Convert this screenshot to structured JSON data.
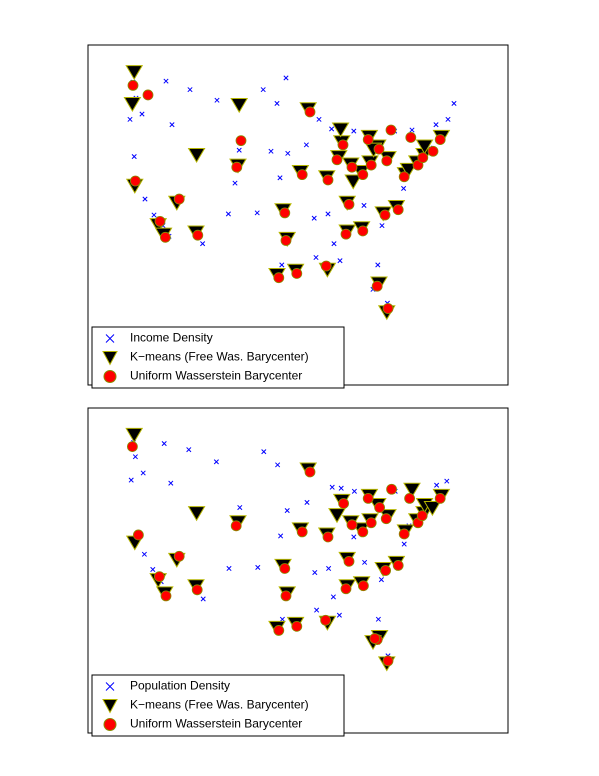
{
  "chart_data": [
    {
      "type": "scatter",
      "xlim": [
        -130,
        -60
      ],
      "ylim": [
        19,
        51
      ],
      "legend": "lower left",
      "series": [
        {
          "name": "Income Density",
          "color": "#0000ff",
          "marker": "x",
          "x": [
            -122.5,
            -122,
            -123,
            -121,
            -122.3,
            -121.8,
            -120.5,
            -119,
            -117.5,
            -116.5,
            -117,
            -116,
            -113,
            -111.9,
            -112,
            -110.9,
            -115.1,
            -108.5,
            -106.6,
            -104.9,
            -104.8,
            -105.5,
            -100.8,
            -98.5,
            -97,
            -96.7,
            -98,
            -99.5,
            -101.8,
            -97.5,
            -96.8,
            -95.4,
            -98.5,
            -97.7,
            -94.6,
            -93.3,
            -93.6,
            -91.5,
            -90.2,
            -90,
            -92.3,
            -90,
            -88,
            -87.9,
            -89.4,
            -86.2,
            -85.7,
            -83,
            -84.5,
            -81.7,
            -80,
            -83,
            -85.8,
            -86.8,
            -84,
            -86.8,
            -84.4,
            -81,
            -80.8,
            -78.6,
            -77.4,
            -77,
            -76.6,
            -75.2,
            -74,
            -73,
            -71,
            -72,
            -70,
            -69,
            -76,
            -78.9,
            -81.7,
            -81.4,
            -82.5,
            -80.2,
            -80.1,
            -88,
            -89,
            -92
          ],
          "y": [
            47.5,
            46,
            44,
            44.5,
            40.5,
            38,
            36.5,
            35,
            34,
            33,
            47.6,
            43.5,
            46.8,
            40.7,
            33.5,
            32.3,
            36.2,
            45.8,
            35.1,
            39.7,
            41.1,
            38,
            46.8,
            45.5,
            47.9,
            40.8,
            38.5,
            41,
            35.2,
            35.5,
            32.8,
            29.8,
            29.4,
            30.3,
            39.1,
            45,
            41.6,
            44,
            38.6,
            35.1,
            34.7,
            30,
            41.8,
            43,
            43.1,
            39.8,
            42.9,
            42.3,
            39.1,
            41.5,
            40.4,
            40,
            38.2,
            36.2,
            35.9,
            33.5,
            33.7,
            34,
            35.2,
            35.8,
            37.5,
            38.9,
            39.3,
            40,
            40.7,
            41.3,
            42.4,
            43.5,
            44,
            45.5,
            43,
            42.9,
            30.3,
            28.5,
            28,
            25.8,
            26.7,
            30.7,
            32.3,
            31
          ]
        },
        {
          "name": "K−means (Free Was. Barycenter)",
          "color": "#000000",
          "edgecolor": "#b5b500",
          "marker": "v",
          "x": [
            -122.3,
            -122.6,
            -122.2,
            -118.3,
            -117.4,
            -112,
            -105,
            -115.2,
            -111.9,
            -104.8,
            -96.8,
            -95.4,
            -98.5,
            -97.5,
            -94.6,
            -93.3,
            -90.2,
            -87.7,
            -87.9,
            -83.1,
            -81.7,
            -84.5,
            -86.2,
            -80,
            -83,
            -85.8,
            -86.8,
            -84.4,
            -80.8,
            -78.6,
            -77.1,
            -75.2,
            -74,
            -73.9,
            -71.1,
            -76.6,
            -80.2,
            -81.5,
            -90.1,
            -86.8,
            -88.2,
            -82.4
          ],
          "y": [
            48.5,
            45.5,
            37.8,
            34.1,
            33.2,
            33.4,
            39.7,
            36.2,
            40.7,
            45.4,
            32.8,
            29.8,
            29.4,
            35.5,
            39.1,
            45,
            38.6,
            41.9,
            43.1,
            42.4,
            41.5,
            39.1,
            39.8,
            40.4,
            40,
            38.2,
            36.2,
            33.8,
            35.2,
            35.8,
            38.9,
            40,
            40.7,
            41.5,
            42.4,
            39.3,
            25.9,
            28.6,
            29.9,
            33.5,
            40.5,
            41.2
          ]
        },
        {
          "name": "Uniform Wasserstein Barycenter",
          "color": "#ff0000",
          "edgecolor": "#8a8a00",
          "marker": "o",
          "x": [
            -122.5,
            -120,
            -122.1,
            -118,
            -117.1,
            -111.7,
            -105.2,
            -114.8,
            -104.5,
            -97,
            -95.2,
            -98.2,
            -97.2,
            -94.3,
            -93,
            -90,
            -87.5,
            -83.3,
            -81.5,
            -84.2,
            -86,
            -80.2,
            -82.8,
            -86.5,
            -84.2,
            -80.5,
            -78.3,
            -77.3,
            -75,
            -74.2,
            -71.3,
            -80,
            -81.8,
            -90.3,
            -87,
            -88.5,
            -79.5,
            -76.2,
            -72.5
          ],
          "y": [
            47.2,
            46.3,
            38.2,
            34.4,
            32.9,
            33.1,
            39.5,
            36.5,
            42,
            32.6,
            29.5,
            29.1,
            35.2,
            38.8,
            44.7,
            38.3,
            41.6,
            42.1,
            41.2,
            38.8,
            39.5,
            40.1,
            39.7,
            36,
            33.5,
            35,
            35.5,
            38.6,
            39.7,
            40.4,
            42.1,
            26.2,
            28.3,
            30.2,
            33.2,
            40.2,
            43,
            42.3,
            41
          ]
        }
      ]
    },
    {
      "type": "scatter",
      "xlim": [
        -130,
        -60
      ],
      "ylim": [
        19,
        51
      ],
      "legend": "lower left",
      "series": [
        {
          "name": "Population Density",
          "color": "#0000ff",
          "marker": "x",
          "x": [
            -122.4,
            -122.1,
            -122.8,
            -120.8,
            -121.9,
            -120.6,
            -119.2,
            -117.8,
            -116.9,
            -117.3,
            -116.2,
            -113.2,
            -111.8,
            -112.1,
            -110.8,
            -115.2,
            -108.6,
            -106.5,
            -104.9,
            -104.7,
            -100.7,
            -98.4,
            -96.8,
            -97.9,
            -101.7,
            -97.4,
            -96.9,
            -95.3,
            -98.4,
            -97.6,
            -94.5,
            -93.2,
            -93.5,
            -90.1,
            -89.9,
            -92.2,
            -89.9,
            -87.9,
            -87.8,
            -89.3,
            -86.1,
            -85.6,
            -83.1,
            -84.4,
            -81.6,
            -79.9,
            -82.9,
            -85.7,
            -86.7,
            -83.9,
            -86.7,
            -84.3,
            -81.1,
            -80.7,
            -78.5,
            -77.3,
            -77.1,
            -76.5,
            -75.1,
            -73.9,
            -72.9,
            -71.1,
            -71.9,
            -70.2,
            -75.9,
            -78.8,
            -81.6,
            -81.3,
            -82.4,
            -80.3,
            -80.0,
            -88.1,
            -89.1,
            -91.9
          ],
          "y": [
            47.6,
            46.2,
            43.9,
            44.6,
            38.1,
            36.6,
            35.1,
            33.9,
            32.9,
            47.5,
            43.6,
            46.9,
            40.8,
            33.4,
            32.2,
            36.1,
            45.7,
            35.2,
            39.6,
            41.2,
            46.7,
            45.4,
            40.9,
            38.4,
            35.3,
            35.6,
            32.7,
            29.7,
            29.5,
            30.2,
            39.2,
            44.9,
            41.7,
            38.5,
            35.2,
            34.8,
            30.1,
            41.9,
            43.1,
            43.2,
            39.7,
            42.8,
            42.2,
            39.2,
            41.4,
            40.5,
            39.9,
            38.3,
            36.1,
            35.8,
            33.6,
            33.8,
            34.1,
            35.1,
            35.9,
            37.6,
            38.8,
            39.4,
            39.9,
            40.8,
            41.4,
            42.3,
            43.4,
            43.8,
            43.1,
            42.8,
            30.2,
            28.6,
            27.9,
            25.9,
            26.6,
            30.6,
            32.4,
            31.1
          ]
        },
        {
          "name": "K−means (Free Was. Barycenter)",
          "color": "#000000",
          "edgecolor": "#b5b500",
          "marker": "v",
          "x": [
            -122.3,
            -122.2,
            -118.3,
            -117.2,
            -112,
            -111.9,
            -105,
            -115.2,
            -96.8,
            -95.4,
            -98.5,
            -97.5,
            -94.6,
            -93.3,
            -90.2,
            -87.7,
            -83.1,
            -81.7,
            -84.5,
            -86.2,
            -80,
            -83,
            -86.8,
            -84.4,
            -80.8,
            -78.6,
            -77.1,
            -75.2,
            -74,
            -73.9,
            -71.1,
            -80.2,
            -81.4,
            -82.5,
            -90.1,
            -86.8,
            -88.5,
            -76,
            -72.6
          ],
          "y": [
            48.4,
            37.8,
            34.1,
            32.8,
            33.5,
            40.7,
            39.8,
            36.1,
            32.8,
            29.8,
            29.4,
            35.5,
            39.1,
            45,
            38.6,
            41.9,
            42.4,
            41.5,
            39.1,
            39.8,
            40.4,
            40,
            36.2,
            33.8,
            35.2,
            35.8,
            38.9,
            40,
            40.7,
            41.5,
            42.4,
            25.9,
            28.5,
            28,
            29.9,
            33.5,
            40.5,
            43,
            41.2
          ]
        },
        {
          "name": "Uniform Wasserstein Barycenter",
          "color": "#ff0000",
          "edgecolor": "#8a8a00",
          "marker": "o",
          "x": [
            -122.6,
            -121.6,
            -118.1,
            -117,
            -111.8,
            -105.3,
            -114.8,
            -97,
            -95.2,
            -98.2,
            -97.2,
            -94.3,
            -93,
            -90,
            -87.4,
            -83.3,
            -81.4,
            -84.2,
            -86,
            -80.3,
            -82.8,
            -86.5,
            -84.1,
            -80.4,
            -78.3,
            -77.3,
            -75,
            -74.3,
            -71.3,
            -80,
            -81.8,
            -82.2,
            -90.4,
            -87,
            -79.4,
            -76.4
          ],
          "y": [
            47.2,
            38.5,
            34.4,
            32.5,
            33.1,
            39.4,
            36.4,
            32.5,
            29.5,
            29.1,
            35.2,
            38.8,
            44.7,
            38.3,
            41.6,
            42.1,
            41.2,
            38.8,
            39.5,
            40.1,
            39.7,
            35.9,
            33.5,
            35,
            35.5,
            38.6,
            39.7,
            40.4,
            42.1,
            26.1,
            28.2,
            28.3,
            30.1,
            33.2,
            43,
            42.1
          ]
        }
      ]
    }
  ]
}
